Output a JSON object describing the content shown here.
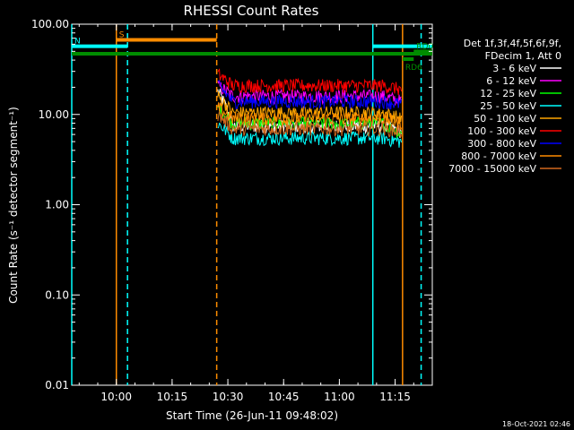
{
  "chart_data": {
    "type": "line",
    "title": "RHESSI Count Rates",
    "xlabel": "Start Time (26-Jun-11 09:48:02)",
    "ylabel": "Count Rate (s⁻¹ detector segment⁻¹)",
    "yscale": "log",
    "ylim": [
      0.01,
      100
    ],
    "xlim": [
      "09:48",
      "11:25"
    ],
    "x_ticks": [
      "10:00",
      "10:15",
      "10:30",
      "10:45",
      "11:00",
      "11:15"
    ],
    "y_ticks": [
      "0.01",
      "0.10",
      "1.00",
      "10.00",
      "100.00"
    ],
    "grid": false,
    "legend_position": "right",
    "legend_header": [
      "Det 1f,3f,4f,5f,6f,9f,",
      "FDecim 1, Att 0"
    ],
    "observation_window": {
      "start": "10:27",
      "end": "11:17"
    },
    "series": [
      {
        "name": "3 - 6 keV",
        "color": "#ffffff",
        "level": 7.5,
        "start_value": 18,
        "end_value": 6.5
      },
      {
        "name": "6 - 12 keV",
        "color": "#ff00ff",
        "level": 16,
        "start_value": 21,
        "end_value": 14
      },
      {
        "name": "12 - 25 keV",
        "color": "#00ff00",
        "level": 8,
        "start_value": 12,
        "end_value": 6
      },
      {
        "name": "25 - 50 keV",
        "color": "#00ffff",
        "level": 5.5,
        "start_value": 8,
        "end_value": 5
      },
      {
        "name": "50 - 100 keV",
        "color": "#ffa500",
        "level": 10.5,
        "start_value": 16,
        "end_value": 9
      },
      {
        "name": "100 - 300 keV",
        "color": "#ff0000",
        "level": 21,
        "start_value": 28,
        "end_value": 19
      },
      {
        "name": "300 - 800 keV",
        "color": "#0000ff",
        "level": 14,
        "start_value": 21,
        "end_value": 13
      },
      {
        "name": "800 - 7000 keV",
        "color": "#ff8c00",
        "level": 9,
        "start_value": 12,
        "end_value": 8
      },
      {
        "name": "7000 - 15000 keV",
        "color": "#d2691e",
        "level": 7,
        "start_value": 10,
        "end_value": 6.5
      }
    ],
    "annotations": {
      "flag_bars": [
        {
          "label": "S",
          "start": "10:00",
          "end": "10:27",
          "value": 67,
          "color": "#ff8c00"
        },
        {
          "label": "N",
          "start": "09:48",
          "end": "10:03",
          "value": 57,
          "color": "#00ffff"
        },
        {
          "label": "",
          "start": "09:48",
          "end": "11:25",
          "value": 47,
          "color": "#008c00"
        },
        {
          "label": "",
          "start": "11:09",
          "end": "11:25",
          "value": 57,
          "color": "#00ffff"
        },
        {
          "label": "RD6",
          "start": "11:17",
          "end": "11:20",
          "value": 41,
          "color": "#008c00"
        },
        {
          "label": "RD0",
          "start": "11:20",
          "end": "11:25",
          "value": 50,
          "color": "#008c00"
        }
      ],
      "vertical_lines": [
        {
          "time": "09:48",
          "color": "#00ffff",
          "style": "solid"
        },
        {
          "time": "10:00",
          "color": "#ff8c00",
          "style": "solid"
        },
        {
          "time": "10:03",
          "color": "#00ffff",
          "style": "dashed"
        },
        {
          "time": "10:27",
          "color": "#ff8c00",
          "style": "dashed"
        },
        {
          "time": "11:09",
          "color": "#00ffff",
          "style": "solid"
        },
        {
          "time": "11:17",
          "color": "#ff8c00",
          "style": "solid"
        },
        {
          "time": "11:22",
          "color": "#00ffff",
          "style": "dashed"
        }
      ]
    }
  },
  "footer": {
    "date": "18-Oct-2021 02:46"
  },
  "colors": {
    "background": "#000000",
    "axes": "#ffffff"
  }
}
